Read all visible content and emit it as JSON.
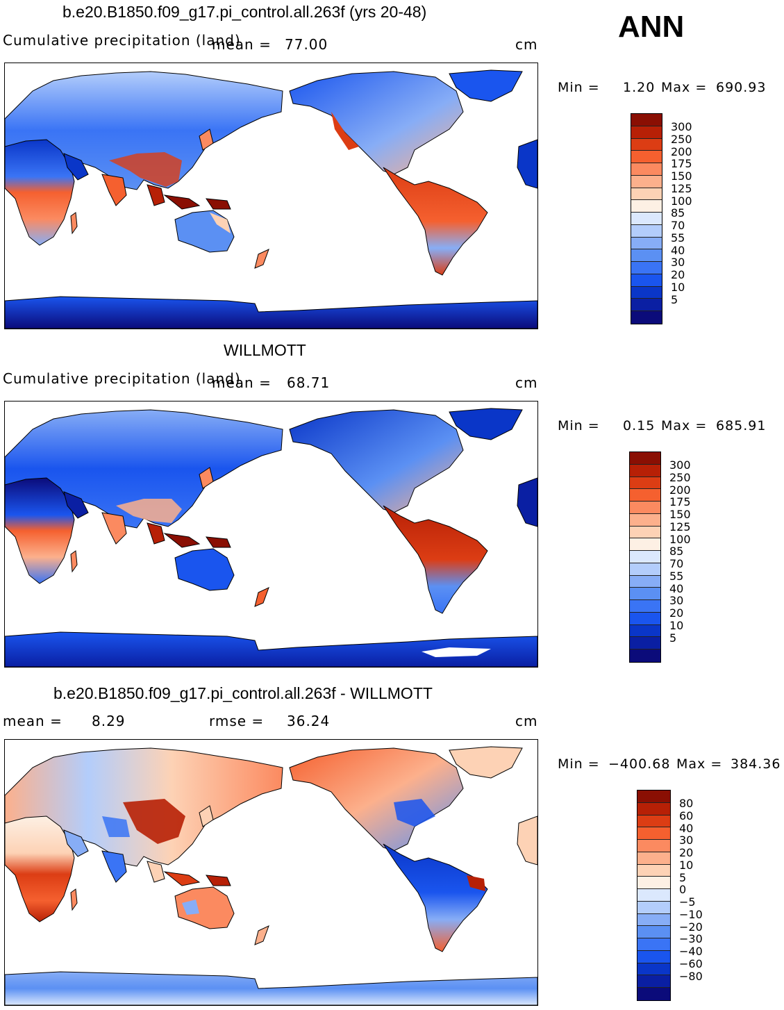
{
  "season": "ANN",
  "palette": [
    "#0b0b7a",
    "#0a1fa3",
    "#0a36c8",
    "#1a55ee",
    "#3a74f5",
    "#5b90f3",
    "#87adf6",
    "#b3cdfb",
    "#dbe8fd",
    "#fdf0e4",
    "#fdd2b5",
    "#fcb08c",
    "#fb8a60",
    "#f5602f",
    "#dc3d14",
    "#b72006",
    "#8a0f03"
  ],
  "panels": [
    {
      "title": "b.e20.B1850.f09_g17.pi_control.all.263f (yrs 20-48)",
      "subtitle": "Cumulative precipitation  (land)",
      "mean_label": "mean =",
      "mean_value": "77.00",
      "unit": "cm",
      "min_label": "Min  =",
      "min_value": "1.20",
      "max_label": "Max  =",
      "max_value": "690.93",
      "ticks": [
        "300",
        "250",
        "200",
        "175",
        "150",
        "125",
        "100",
        "85",
        "70",
        "55",
        "40",
        "30",
        "20",
        "10",
        "5"
      ]
    },
    {
      "title": "WILLMOTT",
      "subtitle": "Cumulative precipitation  (land)",
      "mean_label": "mean =",
      "mean_value": "68.71",
      "unit": "cm",
      "min_label": "Min  =",
      "min_value": "0.15",
      "max_label": "Max  =",
      "max_value": "685.91",
      "ticks": [
        "300",
        "250",
        "200",
        "175",
        "150",
        "125",
        "100",
        "85",
        "70",
        "55",
        "40",
        "30",
        "20",
        "10",
        "5"
      ]
    },
    {
      "title": "b.e20.B1850.f09_g17.pi_control.all.263f - WILLMOTT",
      "mean_label": "mean =",
      "mean_value": "8.29",
      "rmse_label": "rmse =",
      "rmse_value": "36.24",
      "unit": "cm",
      "min_label": "Min  =",
      "min_value": "−400.68",
      "max_label": "Max  =",
      "max_value": "384.36",
      "ticks": [
        "80",
        "60",
        "40",
        "30",
        "20",
        "10",
        "5",
        "0",
        "−5",
        "−10",
        "−20",
        "−30",
        "−40",
        "−60",
        "−80"
      ]
    }
  ]
}
